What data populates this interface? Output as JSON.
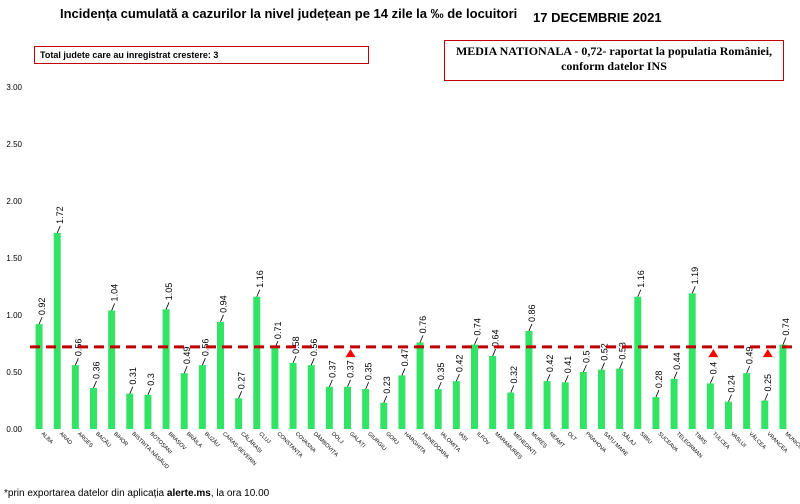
{
  "header": {
    "title": "Incidența cumulată a cazurilor la nivel județean pe 14 zile la ‰ de locuitori",
    "date": "17 DECEMBRIE 2021"
  },
  "increase_note": "Total judete care au inregistrat crestere: 3",
  "national_note": {
    "line1": "MEDIA NATIONALA - 0,72-  raportat la populatia României,",
    "line2": "conform datelor INS"
  },
  "footnote": {
    "prefix": "*prin exportarea datelor din aplicația ",
    "app": "alerte.ms",
    "suffix": ", la ora 10.00"
  },
  "colors": {
    "bar": "#33e366",
    "reference_line": "#c00000",
    "increase_arrow": "#ff0000"
  },
  "chart_data": {
    "type": "bar",
    "ylim": [
      0,
      3
    ],
    "yticks": [
      "0.00",
      "0.50",
      "1.00",
      "1.50",
      "2.00",
      "2.50",
      "3.00"
    ],
    "ytick_values": [
      0,
      0.5,
      1,
      1.5,
      2,
      2.5,
      3
    ],
    "reference_value": 0.72,
    "categories": [
      "ALBA",
      "ARAD",
      "ARGEȘ",
      "BACĂU",
      "BIHOR",
      "BISTRIȚA-NĂSĂUD",
      "BOTOȘANI",
      "BRAȘOV",
      "BRĂILA",
      "BUZĂU",
      "CARAȘ-SEVERIN",
      "CĂLĂRAȘI",
      "CLUJ",
      "CONSTANȚA",
      "COVASNA",
      "DÂMBOVIȚA",
      "DOLJ",
      "GALAȚI",
      "GIURGIU",
      "GORJ",
      "HARGHITA",
      "HUNEDOARA",
      "IALOMIȚA",
      "IAȘI",
      "ILFOV",
      "MARAMUREȘ",
      "MEHEDINȚI",
      "MUREȘ",
      "NEAMȚ",
      "OLT",
      "PRAHOVA",
      "SATU MARE",
      "SĂLAJ",
      "SIBIU",
      "SUCEAVA",
      "TELEORMAN",
      "TIMIȘ",
      "TULCEA",
      "VASLUI",
      "VÂLCEA",
      "VRANCEA",
      "MUNICIPIUL..."
    ],
    "values": [
      0.92,
      1.72,
      0.56,
      0.36,
      1.04,
      0.31,
      0.3,
      1.05,
      0.49,
      0.56,
      0.94,
      0.27,
      1.16,
      0.71,
      0.58,
      0.56,
      0.37,
      0.37,
      0.35,
      0.23,
      0.47,
      0.76,
      0.35,
      0.42,
      0.74,
      0.64,
      0.32,
      0.86,
      0.42,
      0.41,
      0.5,
      0.52,
      0.53,
      1.16,
      0.28,
      0.44,
      1.19,
      0.4,
      0.24,
      0.49,
      0.25,
      0.74
    ],
    "labels": [
      "0.92",
      "1.72",
      "0.56",
      "0.36",
      "1.04",
      "0.31",
      "0.3",
      "1.05",
      "0.49",
      "0.56",
      "0.94",
      "0.27",
      "1.16",
      "0.71",
      "0.58",
      "0.56",
      "0.37",
      "0.37",
      "0.35",
      "0.23",
      "0.47",
      "0.76",
      "0.35",
      "0.42",
      "0.74",
      "0.64",
      "0.32",
      "0.86",
      "0.42",
      "0.41",
      "0.5",
      "0.52",
      "0.53",
      "1.16",
      "0.28",
      "0.44",
      "1.19",
      "0.4",
      "0.24",
      "0.49",
      "0.25",
      "0.74"
    ],
    "increase_flags": [
      "GALAȚI",
      "TULCEA",
      "VRANCEA"
    ],
    "grid": false
  }
}
